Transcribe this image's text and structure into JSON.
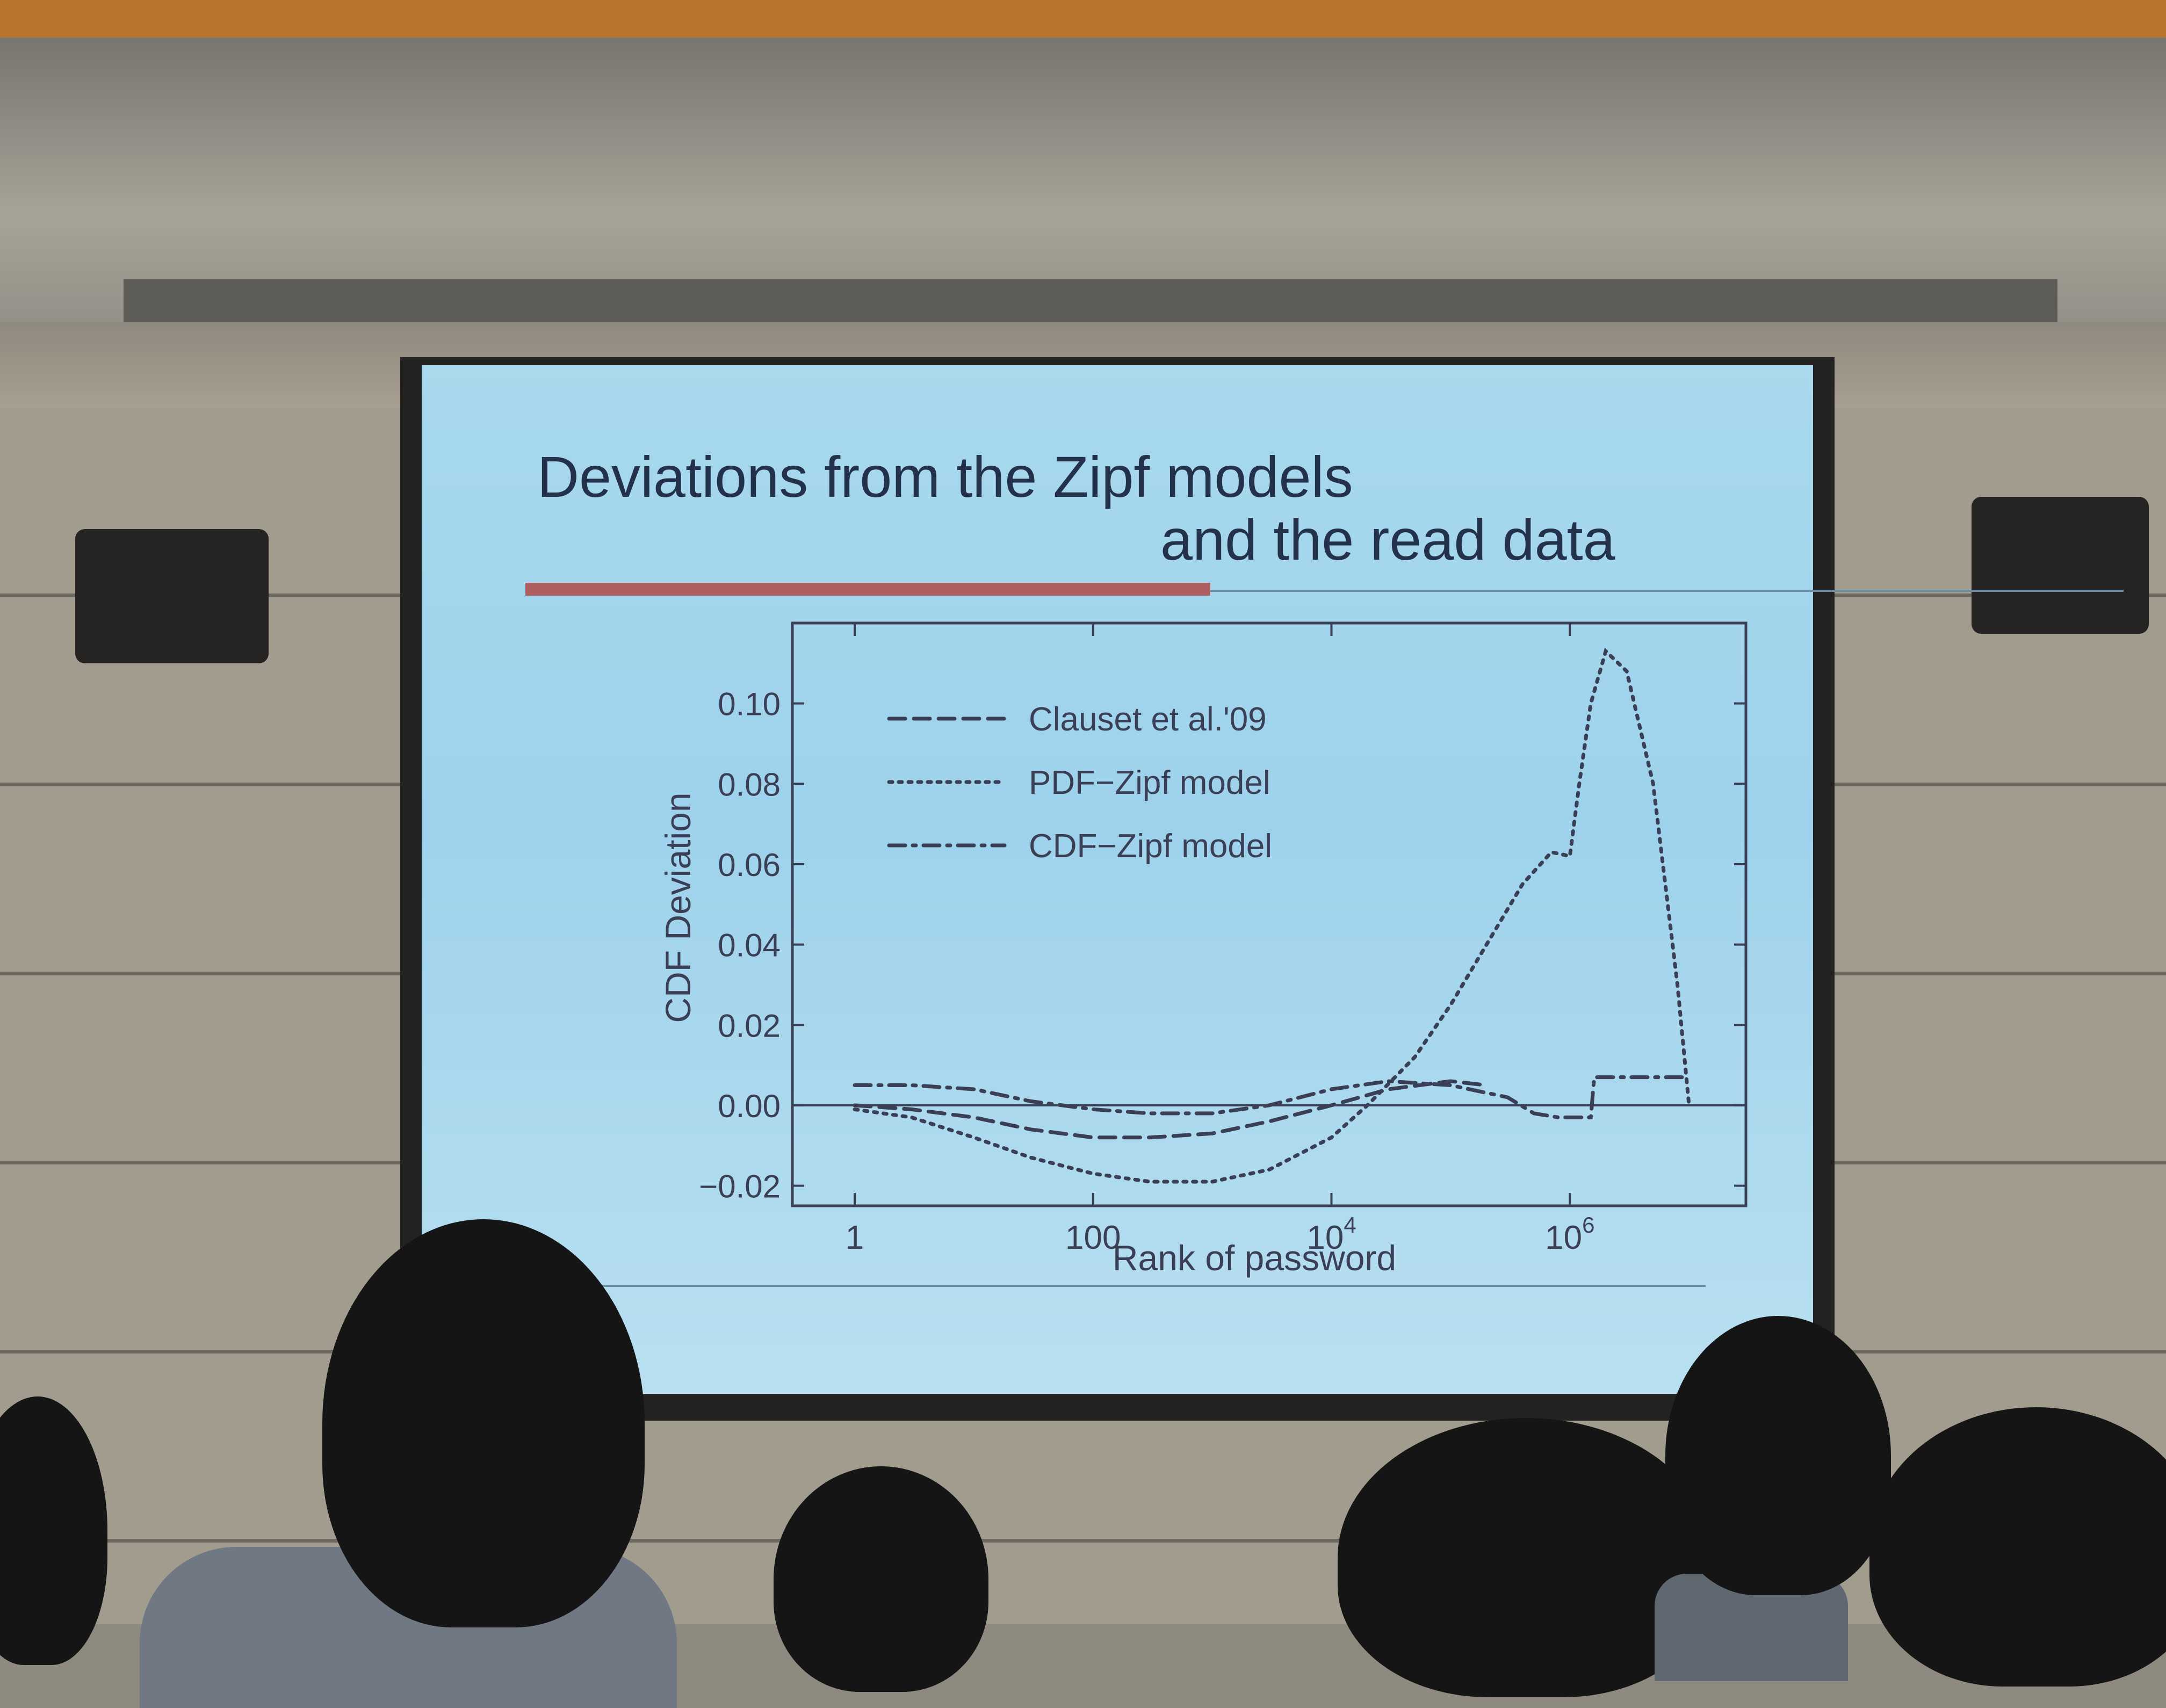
{
  "slide": {
    "title_line1": "Deviations  from the Zipf models",
    "title_line2": "and the read data"
  },
  "colors": {
    "slide_bg": "#a8d9ed",
    "title_bar": "#b05d5f",
    "series_line": "#3a3f55"
  },
  "chart_data": {
    "type": "line",
    "title": "",
    "xlabel": "Rank of password",
    "ylabel": "CDF Deviation",
    "xscale": "log",
    "xlim": [
      0.3,
      30000000
    ],
    "ylim": [
      -0.025,
      0.12
    ],
    "x_ticks": [
      {
        "value": 1,
        "label": "1"
      },
      {
        "value": 100,
        "label": "100"
      },
      {
        "value": 10000,
        "label": "10",
        "sup": "4"
      },
      {
        "value": 1000000,
        "label": "10",
        "sup": "6"
      }
    ],
    "y_ticks": [
      {
        "value": 0.1,
        "label": "0.10"
      },
      {
        "value": 0.08,
        "label": "0.08"
      },
      {
        "value": 0.06,
        "label": "0.06"
      },
      {
        "value": 0.04,
        "label": "0.04"
      },
      {
        "value": 0.02,
        "label": "0.02"
      },
      {
        "value": 0.0,
        "label": "0.00"
      },
      {
        "value": -0.02,
        "label": "−0.02"
      }
    ],
    "legend_position": "top-left",
    "series": [
      {
        "name": "Clauset et al.'09",
        "style": "dashed",
        "x": [
          1,
          3,
          10,
          30,
          100,
          300,
          1000,
          3000,
          10000,
          30000,
          100000,
          200000
        ],
        "y": [
          0.0,
          -0.001,
          -0.003,
          -0.006,
          -0.008,
          -0.008,
          -0.007,
          -0.004,
          0.0,
          0.004,
          0.006,
          0.005
        ]
      },
      {
        "name": "PDF−Zipf model",
        "style": "dotted",
        "x": [
          1,
          3,
          10,
          30,
          100,
          300,
          1000,
          3000,
          10000,
          20000,
          50000,
          100000,
          200000,
          400000,
          700000,
          1000000,
          1200000,
          1500000,
          2000000,
          3000000,
          5000000,
          8000000,
          10000000
        ],
        "y": [
          -0.001,
          -0.003,
          -0.008,
          -0.013,
          -0.017,
          -0.019,
          -0.019,
          -0.016,
          -0.008,
          0.0,
          0.012,
          0.025,
          0.04,
          0.055,
          0.063,
          0.062,
          0.08,
          0.1,
          0.113,
          0.108,
          0.08,
          0.03,
          0.0
        ]
      },
      {
        "name": "CDF−Zipf model",
        "style": "dashdot",
        "x": [
          1,
          3,
          10,
          30,
          100,
          300,
          1000,
          3000,
          10000,
          30000,
          100000,
          300000,
          500000,
          800000,
          1000000,
          1500000,
          1600000,
          3000000,
          10000000
        ],
        "y": [
          0.005,
          0.005,
          0.004,
          0.001,
          -0.001,
          -0.002,
          -0.002,
          0.0,
          0.004,
          0.006,
          0.005,
          0.002,
          -0.002,
          -0.003,
          -0.003,
          -0.003,
          0.007,
          0.007,
          0.007
        ]
      }
    ]
  }
}
